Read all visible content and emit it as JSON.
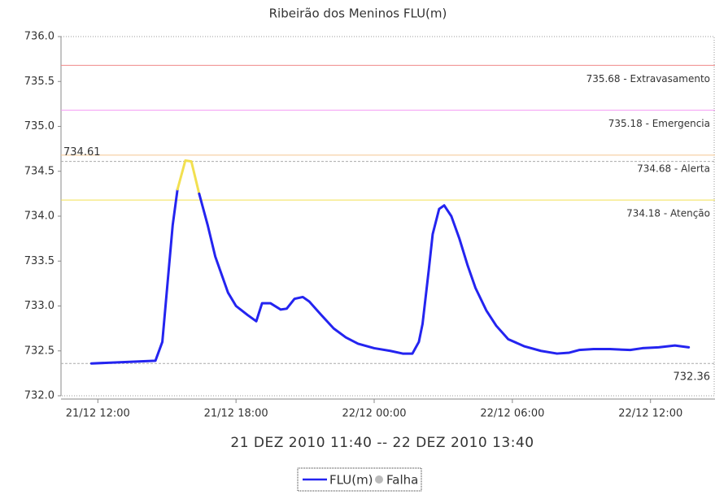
{
  "chart_data": {
    "type": "line",
    "title": "Ribeirão dos Meninos FLU(m)",
    "x_label": "21 DEZ 2010 11:40 -- 22 DEZ 2010 13:40",
    "x": [
      11.72,
      14.5,
      14.8,
      15.25,
      15.46,
      15.8,
      16.06,
      16.4,
      16.77,
      17.1,
      17.65,
      18.0,
      18.5,
      18.88,
      19.13,
      19.5,
      19.94,
      20.2,
      20.54,
      20.9,
      21.18,
      21.7,
      22.24,
      22.77,
      23.3,
      24.0,
      24.7,
      25.24,
      25.66,
      25.94,
      26.1,
      26.37,
      26.54,
      26.82,
      27.04,
      27.35,
      27.7,
      28.06,
      28.4,
      28.87,
      29.3,
      29.82,
      30.53,
      31.24,
      31.94,
      32.47,
      32.9,
      33.53,
      34.24,
      35.12,
      35.65,
      36.35,
      37.06,
      37.66
    ],
    "series": [
      {
        "name": "FLU(m)",
        "color": "#2424f0",
        "values": [
          732.36,
          732.39,
          732.6,
          733.9,
          734.3,
          734.62,
          734.61,
          734.25,
          733.9,
          733.55,
          733.15,
          733.0,
          732.9,
          732.83,
          733.03,
          733.03,
          732.96,
          732.97,
          733.08,
          733.1,
          733.05,
          732.9,
          732.75,
          732.65,
          732.58,
          732.53,
          732.5,
          732.47,
          732.47,
          732.6,
          732.8,
          733.4,
          733.8,
          734.08,
          734.12,
          734.0,
          733.75,
          733.45,
          733.2,
          732.95,
          732.78,
          732.63,
          732.55,
          732.5,
          732.47,
          732.48,
          732.51,
          732.52,
          732.52,
          732.51,
          732.53,
          732.54,
          732.56,
          732.54
        ]
      }
    ],
    "failure_legend": {
      "name": "Falha",
      "color": "#bbbbbb"
    },
    "thresholds": [
      {
        "value": 735.68,
        "label": "735.68 - Extravasamento",
        "color": "#f08a8a"
      },
      {
        "value": 735.18,
        "label": "735.18 - Emergencia",
        "color": "#f59af5"
      },
      {
        "value": 734.68,
        "label": "734.68 - Alerta",
        "color": "#f5c890"
      },
      {
        "value": 734.18,
        "label": "734.18 - Atenção",
        "color": "#f2e050"
      }
    ],
    "reference_lines": [
      734.61,
      732.36
    ],
    "xlim": [
      10.4,
      38.8
    ],
    "xticks": [
      {
        "value": 12,
        "label": "21/12 12:00"
      },
      {
        "value": 18,
        "label": "21/12 18:00"
      },
      {
        "value": 24,
        "label": "22/12 00:00"
      },
      {
        "value": 30,
        "label": "22/12 06:00"
      },
      {
        "value": 36,
        "label": "22/12 12:00"
      }
    ],
    "ylim": [
      732.0,
      736.0
    ],
    "yticks": [
      {
        "value": 732.0,
        "label": "732.0"
      },
      {
        "value": 732.5,
        "label": "732.5"
      },
      {
        "value": 733.0,
        "label": "733.0"
      },
      {
        "value": 733.5,
        "label": "733.5"
      },
      {
        "value": 734.0,
        "label": "734.0"
      },
      {
        "value": 734.5,
        "label": "734.5"
      },
      {
        "value": 735.0,
        "label": "735.0"
      },
      {
        "value": 735.5,
        "label": "735.5"
      },
      {
        "value": 736.0,
        "label": "736.0"
      }
    ],
    "grid": false
  }
}
